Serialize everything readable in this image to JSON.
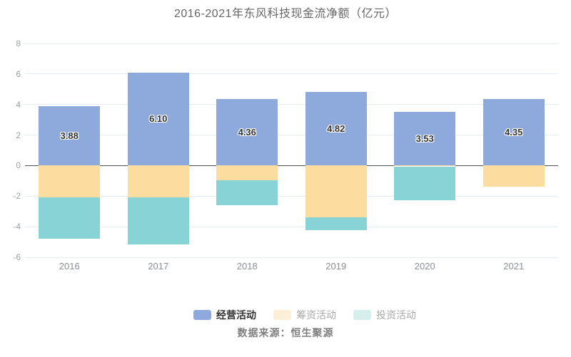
{
  "title": "2016-2021年东风科技现金流净额（亿元）",
  "source_text": "数据来源：恒生聚源",
  "legend": {
    "items": [
      {
        "label": "经营活动",
        "state": "highlighted"
      },
      {
        "label": "筹资活动",
        "state": "dimmed"
      },
      {
        "label": "投资活动",
        "state": "dimmed"
      }
    ]
  },
  "colors": {
    "operating": "#8EA9DB",
    "financing": "#FDDCA0",
    "investing": "#87D3D6",
    "financing_legend_dim": "#FCEFD8",
    "investing_legend_dim": "#D5EFEF",
    "gridline": "#E5ECF6",
    "zero_line": "#4d4f55",
    "axis_text": "#98a0ab",
    "title_text": "#666666",
    "bar_label_text": "#333333",
    "source_text": "#808080"
  },
  "chart_data": {
    "type": "bar",
    "stacked": true,
    "title": "2016-2021年东风科技现金流净额（亿元）",
    "categories": [
      "2016",
      "2017",
      "2018",
      "2019",
      "2020",
      "2021"
    ],
    "series": [
      {
        "name": "经营活动",
        "key": "operating",
        "color": "#8EA9DB",
        "values": [
          3.88,
          6.1,
          4.36,
          4.82,
          3.53,
          4.35
        ],
        "data_labels": [
          "3.88",
          "6.10",
          "4.36",
          "4.82",
          "3.53",
          "4.35"
        ]
      },
      {
        "name": "筹资活动",
        "key": "financing",
        "color": "#FDDCA0",
        "values": [
          -2.1,
          -2.1,
          -0.95,
          -3.4,
          -0.05,
          -1.4
        ]
      },
      {
        "name": "投资活动",
        "key": "investing",
        "color": "#87D3D6",
        "values": [
          -2.7,
          -3.05,
          -1.65,
          -0.85,
          -2.2,
          0
        ]
      }
    ],
    "ylim": [
      -6,
      8
    ],
    "yticks": [
      8,
      6,
      4,
      2,
      0,
      -2,
      -4,
      -6
    ],
    "grid": true,
    "legend_position": "bottom",
    "xlabel": "",
    "ylabel": ""
  }
}
